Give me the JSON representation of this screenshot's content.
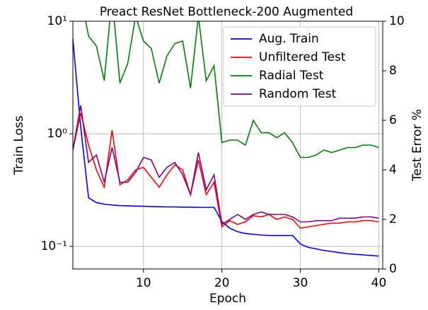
{
  "chart_data": {
    "type": "line",
    "title": "Preact ResNet Bottleneck-200 Augmented",
    "xlabel": "Epoch",
    "ylabel": "Train Loss",
    "y2label": "Test Error %",
    "x": [
      1,
      2,
      3,
      4,
      5,
      6,
      7,
      8,
      9,
      10,
      11,
      12,
      13,
      14,
      15,
      16,
      17,
      18,
      19,
      20,
      21,
      22,
      23,
      24,
      25,
      26,
      27,
      28,
      29,
      30,
      31,
      32,
      33,
      34,
      35,
      36,
      37,
      38,
      39,
      40
    ],
    "xlim": [
      1,
      40.5
    ],
    "xticks": [
      10,
      20,
      30,
      40
    ],
    "ylim": [
      0.063,
      10
    ],
    "yscale": "log",
    "yticks": [
      {
        "value": 0.1,
        "label": "10⁻¹"
      },
      {
        "value": 1,
        "label": "10⁰"
      },
      {
        "value": 10,
        "label": "10¹"
      }
    ],
    "y2lim": [
      0,
      10
    ],
    "y2ticks": [
      0,
      2,
      4,
      6,
      8,
      10
    ],
    "grid": true,
    "legend": "upper right",
    "series": [
      {
        "name": "Aug. Train",
        "color": "#0000ff",
        "axis": "y",
        "values": [
          7,
          1.15,
          0.27,
          0.245,
          0.237,
          0.233,
          0.23,
          0.229,
          0.228,
          0.227,
          0.226,
          0.225,
          0.224,
          0.224,
          0.223,
          0.223,
          0.222,
          0.222,
          0.222,
          0.166,
          0.145,
          0.135,
          0.13,
          0.128,
          0.126,
          0.125,
          0.125,
          0.125,
          0.125,
          0.105,
          0.098,
          0.095,
          0.092,
          0.09,
          0.088,
          0.086,
          0.085,
          0.084,
          0.083,
          0.082
        ]
      },
      {
        "name": "Unfiltered Test",
        "color": "#ff0000",
        "axis": "y2",
        "values": [
          4.8,
          6.3,
          5.0,
          4.0,
          3.3,
          5.6,
          3.4,
          3.6,
          4.0,
          4.1,
          3.7,
          3.3,
          3.8,
          4.2,
          4.0,
          3.0,
          4.4,
          3.0,
          3.5,
          1.7,
          1.95,
          1.8,
          1.9,
          2.15,
          2.1,
          2.2,
          2.0,
          2.1,
          2.0,
          1.65,
          1.7,
          1.75,
          1.8,
          1.85,
          1.85,
          1.9,
          1.9,
          1.95,
          1.95,
          1.9
        ]
      },
      {
        "name": "Radial Test",
        "color": "#008000",
        "axis": "y2",
        "values": [
          10.5,
          11,
          9.4,
          9.0,
          7.6,
          11,
          7.5,
          8.3,
          10.2,
          9.2,
          8.9,
          7.5,
          8.6,
          9.1,
          9.2,
          7.3,
          10.2,
          7.6,
          8.2,
          5.1,
          5.2,
          5.2,
          5.0,
          6.0,
          5.5,
          5.5,
          5.3,
          5.5,
          5.1,
          4.5,
          4.5,
          4.6,
          4.8,
          4.7,
          4.8,
          4.9,
          4.9,
          5.0,
          5.0,
          4.9
        ]
      },
      {
        "name": "Random Test",
        "color": "#800080",
        "axis": "y2",
        "values": [
          4.8,
          6.6,
          4.3,
          4.6,
          3.5,
          4.9,
          3.5,
          3.5,
          3.9,
          4.5,
          4.4,
          3.7,
          4.1,
          4.3,
          3.8,
          3.0,
          4.7,
          3.2,
          3.8,
          1.8,
          2.0,
          2.2,
          2.0,
          2.2,
          2.3,
          2.2,
          2.2,
          2.2,
          2.1,
          1.9,
          1.9,
          1.95,
          1.95,
          1.95,
          2.05,
          2.05,
          2.05,
          2.1,
          2.1,
          2.05
        ]
      }
    ]
  }
}
